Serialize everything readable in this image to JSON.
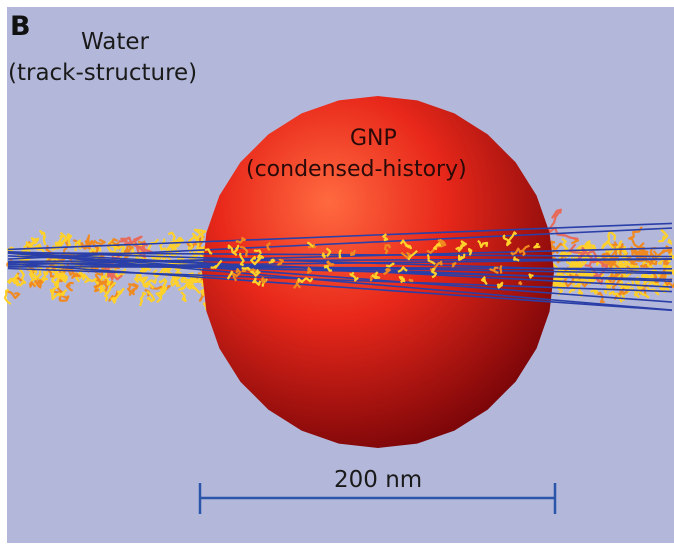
{
  "panel_letter": "B",
  "water_label": {
    "title": "Water",
    "subtitle": "(track-structure)"
  },
  "gnp_label": {
    "title": "GNP",
    "subtitle": "(condensed-history)"
  },
  "scalebar": {
    "label": "200 nm"
  },
  "colors": {
    "background": "#b3b8da",
    "sphere_highlight": "#ff6a40",
    "sphere_mid": "#e8281a",
    "sphere_shadow": "#7a0508",
    "primary_tracks": "#2a3fa8",
    "secondary_tracks_yellow": "#ffd12a",
    "secondary_tracks_orange": "#f08a20",
    "scalebar": "#2a55a8"
  }
}
